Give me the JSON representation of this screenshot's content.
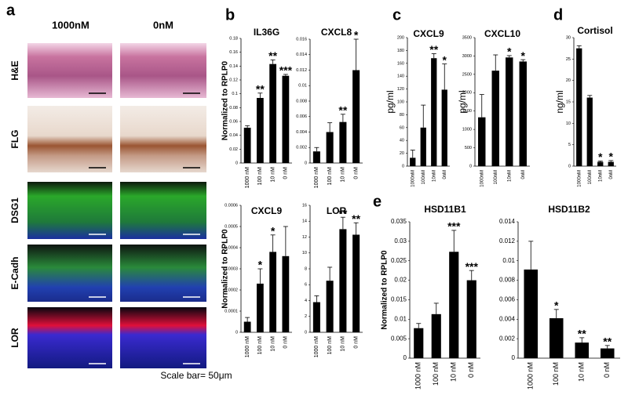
{
  "figure_a": {
    "label": "a",
    "columns": [
      "1000nM",
      "0nM"
    ],
    "rows": [
      "H&E",
      "FLG",
      "DSG1",
      "E-Cadh",
      "LOR"
    ],
    "scale_bar": "Scale bar= 50μm"
  },
  "panel_labels": [
    "b",
    "c",
    "d",
    "e"
  ],
  "chart_data": [
    {
      "type": "bar",
      "title": "IL36G",
      "y_label": "Normalized to RPLP0",
      "color": "#000000",
      "categories": [
        "1000 nM",
        "100 nM",
        "10 nM",
        "0 nM"
      ],
      "values": [
        0.051,
        0.094,
        0.143,
        0.126
      ],
      "errors": [
        0.003,
        0.007,
        0.006,
        0.002
      ],
      "annotations": [
        null,
        "**",
        "**",
        "***"
      ],
      "ylim": [
        0,
        0.18
      ],
      "yticks": [
        0,
        0.02,
        0.04,
        0.06,
        0.08,
        0.1,
        0.12,
        0.14,
        0.16,
        0.18
      ]
    },
    {
      "type": "bar",
      "title": "CXCL8",
      "color": "#000000",
      "categories": [
        "1000 nM",
        "100 nM",
        "10 nM",
        "0 nM"
      ],
      "values": [
        0.0015,
        0.004,
        0.0053,
        0.012
      ],
      "errors": [
        0.0005,
        0.0012,
        0.001,
        0.004
      ],
      "annotations": [
        null,
        null,
        "**",
        "*"
      ],
      "ylim": [
        0,
        0.016
      ],
      "yticks": [
        0,
        0.002,
        0.004,
        0.006,
        0.008,
        0.01,
        0.012,
        0.014,
        0.016
      ]
    },
    {
      "type": "bar",
      "title": "CXCL9",
      "y_label": "Normalized to RPLP0",
      "color": "#000000",
      "categories": [
        "1000 nM",
        "100 nM",
        "10 nM",
        "0 nM"
      ],
      "values": [
        5e-05,
        0.00023,
        0.00038,
        0.00036
      ],
      "errors": [
        2e-05,
        7e-05,
        8e-05,
        0.00014
      ],
      "annotations": [
        null,
        "*",
        "*",
        null
      ],
      "ylim": [
        0,
        0.0006
      ],
      "yticks": [
        0,
        0.0001,
        0.0002,
        0.0003,
        0.0004,
        0.0005,
        0.0006
      ]
    },
    {
      "type": "bar",
      "title": "LOR",
      "color": "#000000",
      "categories": [
        "1000 nM",
        "100 nM",
        "10 nM",
        "0 nM"
      ],
      "values": [
        3.8,
        6.5,
        13,
        12.3
      ],
      "errors": [
        0.8,
        1.7,
        1.5,
        1.5
      ],
      "annotations": [
        null,
        null,
        "**",
        "**"
      ],
      "ylim": [
        0,
        16
      ],
      "yticks": [
        0,
        2,
        4,
        6,
        8,
        10,
        12,
        14,
        16
      ]
    },
    {
      "type": "bar",
      "title": "CXCL9",
      "y_label": "pg/ml",
      "color": "#000000",
      "categories": [
        "1000nM",
        "100nM",
        "10nM",
        "0nM"
      ],
      "values": [
        13,
        60,
        168,
        119
      ],
      "errors": [
        12,
        35,
        7,
        40
      ],
      "annotations": [
        null,
        null,
        "**",
        "*"
      ],
      "ylim": [
        0,
        200
      ],
      "yticks": [
        0,
        20,
        40,
        60,
        80,
        100,
        120,
        140,
        160,
        180,
        200
      ]
    },
    {
      "type": "bar",
      "title": "CXCL10",
      "y_label": "pg/ml",
      "color": "#000000",
      "categories": [
        "1000nM",
        "100nM",
        "10nM",
        "0nM"
      ],
      "values": [
        1330,
        2600,
        2960,
        2850
      ],
      "errors": [
        620,
        430,
        50,
        50
      ],
      "annotations": [
        null,
        null,
        "*",
        "*"
      ],
      "ylim": [
        0,
        3500
      ],
      "yticks": [
        0,
        500,
        1000,
        1500,
        2000,
        2500,
        3000,
        3500
      ]
    },
    {
      "type": "bar",
      "title": "Cortisol",
      "y_label": "ng/ml",
      "color": "#000000",
      "categories": [
        "1000nM",
        "100nM",
        "10nM",
        "0nM"
      ],
      "values": [
        27.5,
        16,
        1,
        1
      ],
      "errors": [
        0.6,
        0.5,
        0.2,
        0.3
      ],
      "annotations": [
        null,
        null,
        "*",
        "*"
      ],
      "ylim": [
        0,
        30
      ],
      "yticks": [
        0,
        5,
        10,
        15,
        20,
        25,
        30
      ]
    },
    {
      "type": "bar",
      "title": "HSD11B1",
      "y_label": "Normalized to RPLP0",
      "color": "#000000",
      "categories": [
        "1000 nM",
        "100 nM",
        "10 nM",
        "0 nM"
      ],
      "values": [
        0.0077,
        0.0113,
        0.0273,
        0.02
      ],
      "errors": [
        0.0012,
        0.0028,
        0.0055,
        0.0025
      ],
      "annotations": [
        null,
        null,
        "***",
        "***"
      ],
      "ylim": [
        0,
        0.035
      ],
      "yticks": [
        0,
        0.005,
        0.01,
        0.015,
        0.02,
        0.025,
        0.03,
        0.035
      ]
    },
    {
      "type": "bar",
      "title": "HSD11B2",
      "color": "#000000",
      "categories": [
        "1000 nM",
        "100 nM",
        "10 nM",
        "0 nM"
      ],
      "values": [
        0.0091,
        0.0041,
        0.0016,
        0.001
      ],
      "errors": [
        0.0029,
        0.0009,
        0.0005,
        0.0003
      ],
      "annotations": [
        null,
        "*",
        "**",
        "**"
      ],
      "ylim": [
        0,
        0.014
      ],
      "yticks": [
        0,
        0.002,
        0.004,
        0.006,
        0.008,
        0.01,
        0.012,
        0.014
      ]
    }
  ]
}
